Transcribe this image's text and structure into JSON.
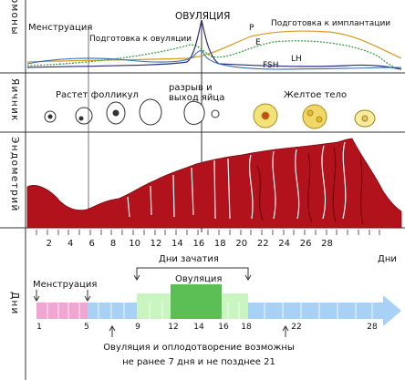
{
  "sections": {
    "hormones": "Гормоны",
    "ovary": "Яичник",
    "endometrium": "Эндометрий",
    "days": "Дни"
  },
  "hormones": {
    "menstruation": "Менструация",
    "ovulation": "ОВУЛЯЦИЯ",
    "follicle_prep": "Подготовка к овуляции",
    "implant_prep": "Подготовка к имплантации",
    "curves": {
      "P": "P",
      "E": "E",
      "LH": "LH",
      "FSH": "FSH"
    },
    "colors": {
      "LH": "#2b2b7a",
      "FSH": "#2f6fb5",
      "E": "#2e9b3a",
      "P": "#d69a1e"
    }
  },
  "ovary": {
    "follicle_growth": "Растет фолликул",
    "rupture": "разрыв и\nвыход яйца",
    "corpus_luteum": "Желтое тело"
  },
  "axis": {
    "ticks": [
      "2",
      "4",
      "6",
      "8",
      "10",
      "12",
      "14",
      "16",
      "18",
      "20",
      "22",
      "24",
      "26",
      "28"
    ],
    "unit": "Дни"
  },
  "cycle": {
    "conception_days": "Дни зачатия",
    "menstruation": "Менструация",
    "ovulation": "Овуляция",
    "numbers": [
      "1",
      "5",
      "9",
      "12",
      "14",
      "16",
      "18",
      "22",
      "28"
    ],
    "note_line1": "Овуляция и оплодотворение возможны",
    "note_line2": "не ранее 7 дня и не позднее 21",
    "colors": {
      "menstruation": "#f0a6d2",
      "fertile": "#c8f5c0",
      "ovulation": "#5cbf55",
      "cycle": "#a8d2f5"
    }
  }
}
